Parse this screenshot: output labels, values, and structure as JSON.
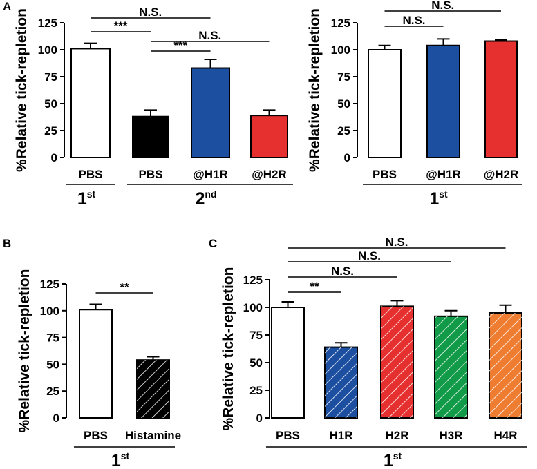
{
  "chart_data": [
    {
      "panel": "A",
      "type": "bar",
      "ylabel": "%Relative tick-repletion",
      "ylim": [
        0,
        125
      ],
      "yticks": [
        0,
        25,
        50,
        75,
        100,
        125
      ],
      "categories": [
        "PBS",
        "PBS",
        "@H1R",
        "@H2R"
      ],
      "values": [
        101,
        38,
        83,
        39
      ],
      "errors": [
        5,
        6,
        8,
        5
      ],
      "colors": [
        "#ffffff",
        "#000000",
        "#1d4fa0",
        "#e5302f"
      ],
      "hatched": [
        false,
        false,
        false,
        false
      ],
      "groups": [
        {
          "label": "1",
          "sup": "st",
          "from": 0,
          "to": 0
        },
        {
          "label": "2",
          "sup": "nd",
          "from": 1,
          "to": 3
        }
      ],
      "significance": [
        {
          "from": 0,
          "to": 1,
          "label": "***"
        },
        {
          "from": 0,
          "to": 2,
          "label": "N.S."
        },
        {
          "from": 1,
          "to": 2,
          "label": "***"
        },
        {
          "from": 1,
          "to": 3,
          "label": "N.S."
        }
      ]
    },
    {
      "panel": "",
      "type": "bar",
      "ylabel": "%Relative tick-repletion",
      "ylim": [
        0,
        125
      ],
      "yticks": [
        0,
        25,
        50,
        75,
        100,
        125
      ],
      "categories": [
        "PBS",
        "@H1R",
        "@H2R"
      ],
      "values": [
        100,
        104,
        108
      ],
      "errors": [
        4,
        6,
        1
      ],
      "colors": [
        "#ffffff",
        "#1d4fa0",
        "#e5302f"
      ],
      "hatched": [
        false,
        false,
        false
      ],
      "groups": [
        {
          "label": "1",
          "sup": "st",
          "from": 0,
          "to": 2
        }
      ],
      "significance": [
        {
          "from": 0,
          "to": 1,
          "label": "N.S."
        },
        {
          "from": 0,
          "to": 2,
          "label": "N.S."
        }
      ]
    },
    {
      "panel": "B",
      "type": "bar",
      "ylabel": "%Relative tick-repletion",
      "ylim": [
        0,
        125
      ],
      "yticks": [
        0,
        25,
        50,
        75,
        100,
        125
      ],
      "categories": [
        "PBS",
        "Histamine"
      ],
      "values": [
        101,
        54
      ],
      "errors": [
        5,
        3
      ],
      "colors": [
        "#ffffff",
        "#000000"
      ],
      "hatched": [
        false,
        true
      ],
      "groups": [
        {
          "label": "1",
          "sup": "st",
          "from": 0,
          "to": 1
        }
      ],
      "significance": [
        {
          "from": 0,
          "to": 1,
          "label": "**"
        }
      ]
    },
    {
      "panel": "C",
      "type": "bar",
      "ylabel": "%Relative tick-repletion",
      "ylim": [
        0,
        125
      ],
      "yticks": [
        0,
        25,
        50,
        75,
        100,
        125
      ],
      "categories": [
        "PBS",
        "H1R",
        "H2R",
        "H3R",
        "H4R"
      ],
      "values": [
        100,
        64,
        101,
        92,
        95
      ],
      "errors": [
        5,
        4,
        5,
        5,
        7
      ],
      "colors": [
        "#ffffff",
        "#1d4fa0",
        "#e5302f",
        "#119a48",
        "#ee7d31"
      ],
      "hatched": [
        false,
        true,
        true,
        true,
        true
      ],
      "groups": [
        {
          "label": "1",
          "sup": "st",
          "from": 0,
          "to": 4
        }
      ],
      "significance": [
        {
          "from": 0,
          "to": 1,
          "label": "**"
        },
        {
          "from": 0,
          "to": 2,
          "label": "N.S."
        },
        {
          "from": 0,
          "to": 3,
          "label": "N.S."
        },
        {
          "from": 0,
          "to": 4,
          "label": "N.S."
        }
      ]
    }
  ]
}
